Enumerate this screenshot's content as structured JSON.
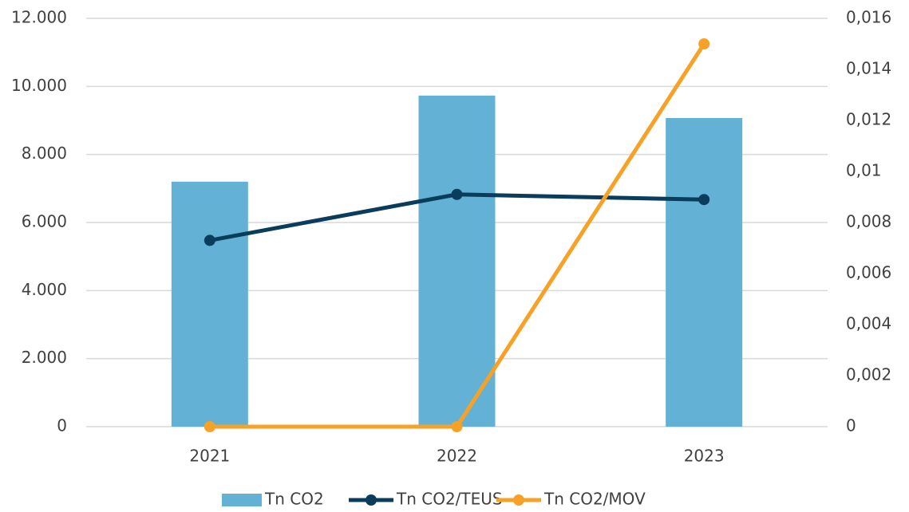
{
  "chart_data": {
    "type": "bar",
    "categories": [
      "2021",
      "2022",
      "2023"
    ],
    "series": [
      {
        "name": "Tn CO2",
        "type": "bar",
        "color": "#63b2d5",
        "values": [
          7200,
          9730,
          9070
        ]
      },
      {
        "name": "Tn CO2/TEUS",
        "type": "line",
        "axis": "y2",
        "color": "#0a3d5c",
        "values": [
          0.0073,
          0.0091,
          0.0089
        ]
      },
      {
        "name": "Tn CO2/MOV",
        "type": "line",
        "axis": "y2",
        "color": "#f7a226",
        "values": [
          0,
          0,
          0.015
        ]
      }
    ],
    "ylim": [
      0,
      12000
    ],
    "yticks": [
      0,
      {
        "value": 2000,
        "label": "2.000"
      },
      {
        "value": 4000,
        "label": "4.000"
      },
      {
        "value": 6000,
        "label": "6.000"
      },
      {
        "value": 8000,
        "label": "8.000"
      },
      {
        "value": 10000,
        "label": "10.000"
      },
      {
        "value": 12000,
        "label": "12.000"
      }
    ],
    "y2lim": [
      0,
      0.016
    ],
    "y2ticks": [
      0,
      {
        "value": 0.002,
        "label": "0,002"
      },
      {
        "value": 0.004,
        "label": "0,004"
      },
      {
        "value": 0.006,
        "label": "0,006"
      },
      {
        "value": 0.008,
        "label": "0,008"
      },
      {
        "value": 0.01,
        "label": "0,01"
      },
      {
        "value": 0.012,
        "label": "0,012"
      },
      {
        "value": 0.014,
        "label": "0,014"
      },
      {
        "value": 0.016,
        "label": "0,016"
      }
    ],
    "grid": true,
    "legend": "bottom"
  }
}
